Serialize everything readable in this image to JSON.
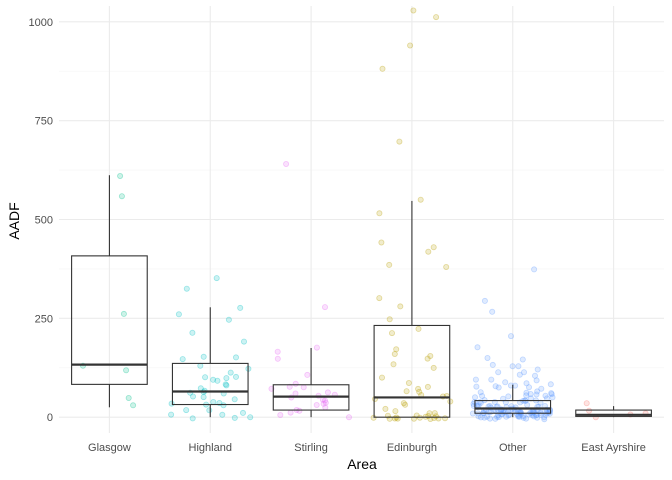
{
  "chart_data": {
    "type": "boxplot",
    "xlabel": "Area",
    "ylabel": "AADF",
    "ylim": [
      -40,
      1040
    ],
    "y_ticks": [
      0,
      250,
      500,
      750,
      1000
    ],
    "y_tick_labels": [
      "0",
      "250",
      "500",
      "750",
      "1000"
    ],
    "grid": true,
    "legend": "none",
    "groups": [
      {
        "name": "Glasgow",
        "color": "#00c08b",
        "box": {
          "q1": 83,
          "median": 133,
          "q3": 408,
          "lower_whisker": 25,
          "upper_whisker": 612
        },
        "points": [
          557,
          615,
          263,
          134,
          122,
          47,
          27
        ]
      },
      {
        "name": "Highland",
        "color": "#00bfc4",
        "box": {
          "q1": 32,
          "median": 65,
          "q3": 136,
          "lower_whisker": 0,
          "upper_whisker": 278
        },
        "points": [
          349,
          328,
          280,
          260,
          245,
          212,
          195,
          152,
          148,
          145,
          130,
          122,
          110,
          105,
          100,
          98,
          95,
          88,
          82,
          78,
          72,
          68,
          62,
          58,
          55,
          50,
          48,
          45,
          42,
          38,
          35,
          32,
          28,
          22,
          18,
          12,
          8,
          5,
          0,
          0,
          0
        ]
      },
      {
        "name": "Stirling",
        "color": "#e76bf3",
        "box": {
          "q1": 18,
          "median": 52,
          "q3": 82,
          "lower_whisker": 0,
          "upper_whisker": 175
        },
        "points": [
          641,
          282,
          178,
          170,
          145,
          110,
          88,
          80,
          75,
          70,
          66,
          62,
          58,
          55,
          50,
          46,
          42,
          38,
          33,
          28,
          24,
          20,
          15,
          10,
          6,
          2
        ]
      },
      {
        "name": "Edinburgh",
        "color": "#b79f00",
        "box": {
          "q1": 0,
          "median": 50,
          "q3": 232,
          "lower_whisker": 0,
          "upper_whisker": 547
        },
        "points": [
          1032,
          1010,
          940,
          885,
          692,
          549,
          512,
          438,
          432,
          417,
          385,
          378,
          305,
          285,
          245,
          228,
          215,
          175,
          160,
          155,
          150,
          130,
          120,
          100,
          85,
          78,
          70,
          65,
          62,
          58,
          55,
          50,
          45,
          40,
          35,
          30,
          25,
          20,
          15,
          10,
          5,
          2,
          0,
          0,
          0,
          0,
          0,
          0,
          0,
          0,
          0,
          0,
          0,
          0,
          0,
          0
        ]
      },
      {
        "name": "Other",
        "color": "#619cff",
        "box": {
          "q1": 10,
          "median": 22,
          "q3": 42,
          "lower_whisker": 0,
          "upper_whisker": 82
        },
        "points": [
          371,
          290,
          265,
          205,
          175,
          150,
          145,
          135,
          130,
          125,
          120,
          115,
          110,
          108,
          104,
          100,
          96,
          92,
          90,
          88,
          85,
          82,
          80,
          78,
          76,
          74,
          72,
          70,
          68,
          66,
          64,
          62,
          60,
          58,
          56,
          55,
          54,
          52,
          50,
          49,
          48,
          47,
          46,
          45,
          44,
          43,
          42,
          41,
          40,
          39,
          38,
          37,
          36,
          35,
          34,
          33,
          32,
          31,
          30,
          30,
          29,
          28,
          28,
          27,
          26,
          26,
          25,
          25,
          24,
          24,
          23,
          23,
          22,
          22,
          22,
          21,
          21,
          20,
          20,
          20,
          19,
          19,
          18,
          18,
          18,
          17,
          17,
          16,
          16,
          16,
          15,
          15,
          15,
          14,
          14,
          14,
          13,
          13,
          13,
          12,
          12,
          12,
          11,
          11,
          11,
          10,
          10,
          10,
          10,
          9,
          9,
          9,
          8,
          8,
          8,
          8,
          7,
          7,
          7,
          6,
          6,
          6,
          6,
          5,
          5,
          5,
          5,
          4,
          4,
          4,
          4,
          3,
          3,
          3,
          3,
          2,
          2,
          2,
          2,
          1,
          1,
          1,
          1,
          0,
          0,
          0,
          0,
          0,
          0
        ]
      },
      {
        "name": "East Ayrshire",
        "color": "#f8766d",
        "box": {
          "q1": 2,
          "median": 6,
          "q3": 18,
          "lower_whisker": 0,
          "upper_whisker": 28
        },
        "points": [
          32,
          15,
          8,
          4,
          1
        ]
      }
    ]
  },
  "colors": {
    "grid_major": "#ebebeb",
    "grid_minor": "#f5f5f5",
    "box_line": "#333333",
    "tick_text": "#4d4d4d",
    "axis_title": "#000000"
  }
}
